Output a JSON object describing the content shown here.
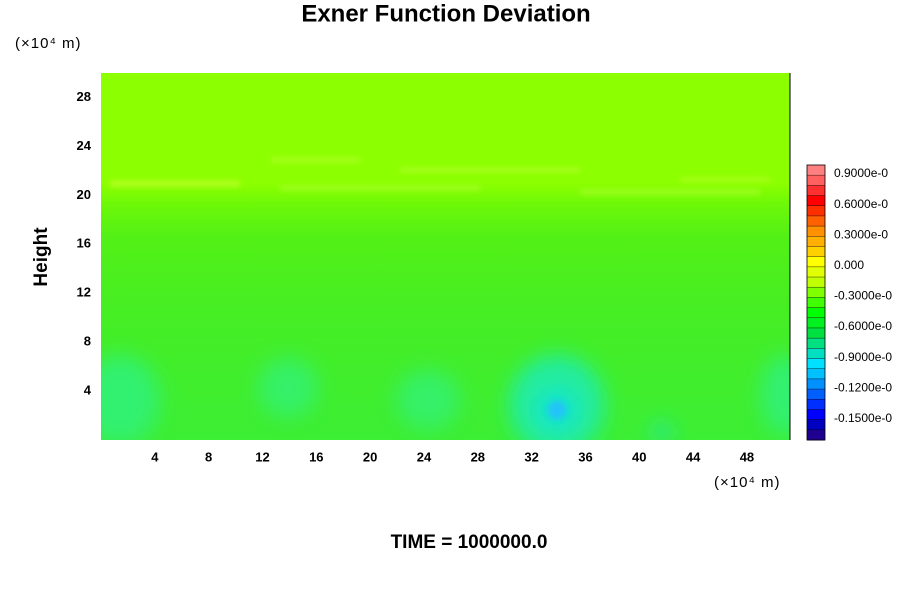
{
  "chart_data": {
    "type": "contour",
    "title": "Exner Function Deviation",
    "y_label": "Height",
    "y_unit": "(×10⁴ m)",
    "x_unit": "(×10⁴ m)",
    "footer": "TIME = 1000000.0",
    "xlim": [
      0,
      51.2
    ],
    "xticks": [
      4,
      8,
      12,
      16,
      20,
      24,
      28,
      32,
      36,
      40,
      44,
      48
    ],
    "ylim": [
      0,
      30
    ],
    "yticks": [
      4,
      8,
      12,
      16,
      20,
      24,
      28
    ],
    "colorbar_labels": [
      "0.9000e-0",
      "0.6000e-0",
      "0.3000e-0",
      "0.000",
      "-0.3000e-0",
      "-0.6000e-0",
      "-0.9000e-0",
      "-0.1200e-0",
      "-0.1500e-0"
    ],
    "colorbar_colors": [
      "#ff8080",
      "#ff6060",
      "#ff3030",
      "#ff0000",
      "#ff3000",
      "#ff6000",
      "#ff9000",
      "#ffb000",
      "#ffd000",
      "#ffff00",
      "#e0ff00",
      "#c0ff00",
      "#80ff00",
      "#40ff00",
      "#00ff00",
      "#00f020",
      "#00e040",
      "#00e080",
      "#00e0c0",
      "#00e0ff",
      "#00c0ff",
      "#0090ff",
      "#0060ff",
      "#0030ff",
      "#0000ff",
      "#0000c0",
      "#200090"
    ]
  }
}
